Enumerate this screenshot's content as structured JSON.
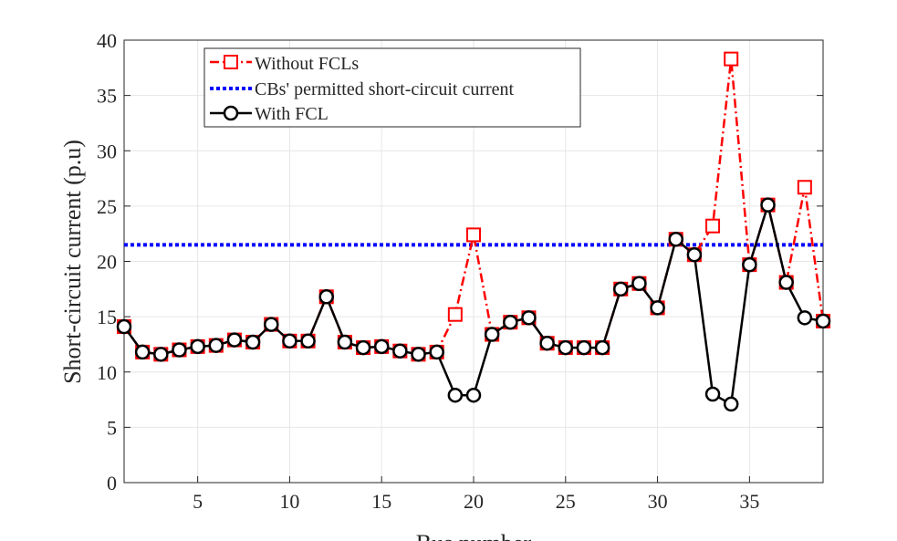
{
  "chart_data": {
    "type": "line",
    "xlabel": "Bus number",
    "ylabel": "Short-circuit current (p.u)",
    "xlim": [
      1,
      39
    ],
    "ylim": [
      0,
      40
    ],
    "xticks": [
      5,
      10,
      15,
      20,
      25,
      30,
      35
    ],
    "yticks": [
      0,
      5,
      10,
      15,
      20,
      25,
      30,
      35,
      40
    ],
    "grid": true,
    "legend_position": "top-left",
    "x": [
      1,
      2,
      3,
      4,
      5,
      6,
      7,
      8,
      9,
      10,
      11,
      12,
      13,
      14,
      15,
      16,
      17,
      18,
      19,
      20,
      21,
      22,
      23,
      24,
      25,
      26,
      27,
      28,
      29,
      30,
      31,
      32,
      33,
      34,
      35,
      36,
      37,
      38,
      39
    ],
    "series": [
      {
        "name": "Without FCLs",
        "color": "#ff0000",
        "style": "dash-dot",
        "marker": "square",
        "values": [
          14.1,
          11.8,
          11.6,
          12.0,
          12.3,
          12.4,
          12.9,
          12.7,
          14.3,
          12.8,
          12.8,
          16.8,
          12.7,
          12.2,
          12.3,
          11.9,
          11.6,
          11.8,
          15.2,
          22.4,
          13.4,
          14.5,
          14.9,
          12.6,
          12.2,
          12.2,
          12.2,
          17.5,
          18.0,
          15.8,
          22.0,
          20.6,
          23.2,
          38.3,
          19.7,
          25.1,
          18.1,
          26.7,
          14.6
        ]
      },
      {
        "name": "CBs' permitted short-circuit current",
        "color": "#0000ff",
        "style": "dotted",
        "marker": "none",
        "constant": 21.5
      },
      {
        "name": "With FCL",
        "color": "#000000",
        "style": "solid",
        "marker": "circle",
        "values": [
          14.1,
          11.8,
          11.6,
          12.0,
          12.3,
          12.4,
          12.9,
          12.7,
          14.3,
          12.8,
          12.8,
          16.8,
          12.7,
          12.2,
          12.3,
          11.9,
          11.6,
          11.8,
          7.9,
          7.9,
          13.4,
          14.5,
          14.9,
          12.6,
          12.2,
          12.2,
          12.2,
          17.5,
          18.0,
          15.8,
          22.0,
          20.6,
          8.0,
          7.1,
          19.7,
          25.1,
          18.1,
          14.9,
          14.6
        ]
      }
    ]
  }
}
